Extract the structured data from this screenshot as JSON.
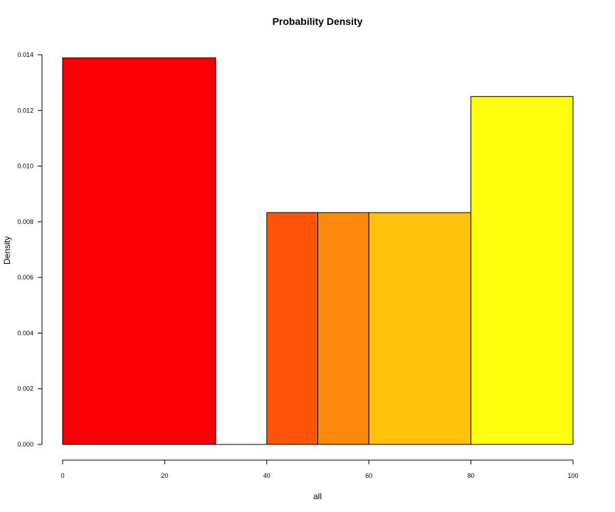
{
  "chart_data": {
    "type": "bar",
    "subtype": "histogram",
    "title": "Probability Density",
    "xlabel": "all",
    "ylabel": "Density",
    "xlim": [
      0,
      100
    ],
    "ylim": [
      0,
      0.014
    ],
    "x_ticks": [
      0,
      20,
      40,
      60,
      80,
      100
    ],
    "y_ticks": [
      "0.000",
      "0.002",
      "0.004",
      "0.006",
      "0.008",
      "0.010",
      "0.012",
      "0.014"
    ],
    "bins": [
      {
        "start": 0,
        "end": 30,
        "density": 0.01389,
        "color": "#FA0006"
      },
      {
        "start": 30,
        "end": 40,
        "density": 0.0,
        "color": "#FC2A00"
      },
      {
        "start": 40,
        "end": 50,
        "density": 0.00833,
        "color": "#FF550A"
      },
      {
        "start": 50,
        "end": 60,
        "density": 0.00833,
        "color": "#FF880B"
      },
      {
        "start": 60,
        "end": 80,
        "density": 0.00833,
        "color": "#FFC20A"
      },
      {
        "start": 80,
        "end": 100,
        "density": 0.0125,
        "color": "#FFFF0E"
      }
    ],
    "grid": false,
    "legend": "none"
  }
}
